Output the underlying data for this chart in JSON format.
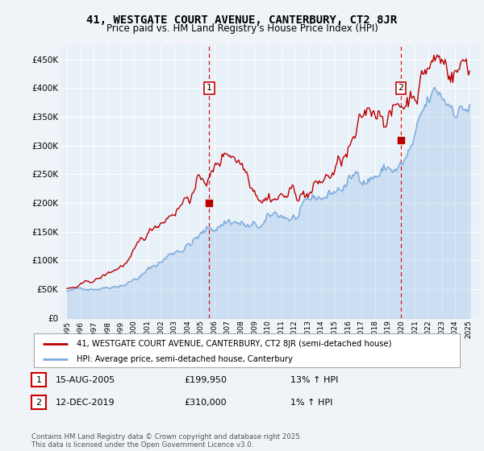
{
  "title": "41, WESTGATE COURT AVENUE, CANTERBURY, CT2 8JR",
  "subtitle": "Price paid vs. HM Land Registry's House Price Index (HPI)",
  "legend_line1": "41, WESTGATE COURT AVENUE, CANTERBURY, CT2 8JR (semi-detached house)",
  "legend_line2": "HPI: Average price, semi-detached house, Canterbury",
  "annotation1": {
    "num": "1",
    "date": "15-AUG-2005",
    "price": "£199,950",
    "hpi": "13% ↑ HPI"
  },
  "annotation2": {
    "num": "2",
    "date": "12-DEC-2019",
    "price": "£310,000",
    "hpi": "1% ↑ HPI"
  },
  "footer": "Contains HM Land Registry data © Crown copyright and database right 2025.\nThis data is licensed under the Open Government Licence v3.0.",
  "background_color": "#f0f4f8",
  "plot_bg_color": "#e8f0f8",
  "line_color_red": "#bb0000",
  "line_color_blue": "#7aaadd",
  "vline_color": "#cc0000",
  "ylim": [
    0,
    475000
  ],
  "yticks": [
    0,
    50000,
    100000,
    150000,
    200000,
    250000,
    300000,
    350000,
    400000,
    450000
  ],
  "ytick_labels": [
    "£0",
    "£50K",
    "£100K",
    "£150K",
    "£200K",
    "£250K",
    "£300K",
    "£350K",
    "£400K",
    "£450K"
  ],
  "sale1_x": 2005.62,
  "sale1_y": 199950,
  "sale2_x": 2019.95,
  "sale2_y": 310000,
  "xlim_left": 1994.5,
  "xlim_right": 2025.8
}
